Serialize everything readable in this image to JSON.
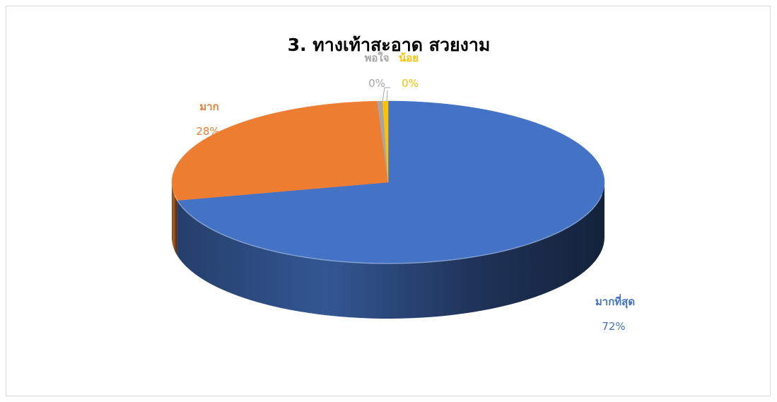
{
  "chart_data": {
    "type": "pie",
    "title": "3. ทางเท้าสะอาด สวยงาม",
    "categories": [
      "มากที่สุด",
      "มาก",
      "พอใจ",
      "น้อย"
    ],
    "values": [
      72,
      28,
      0,
      0
    ],
    "value_labels": [
      "72%",
      "28%",
      "0%",
      "0%"
    ],
    "colors": [
      "#4472C4",
      "#ED7D31",
      "#A5A5A5",
      "#FFC000"
    ],
    "style": "3d",
    "legend": "none"
  }
}
